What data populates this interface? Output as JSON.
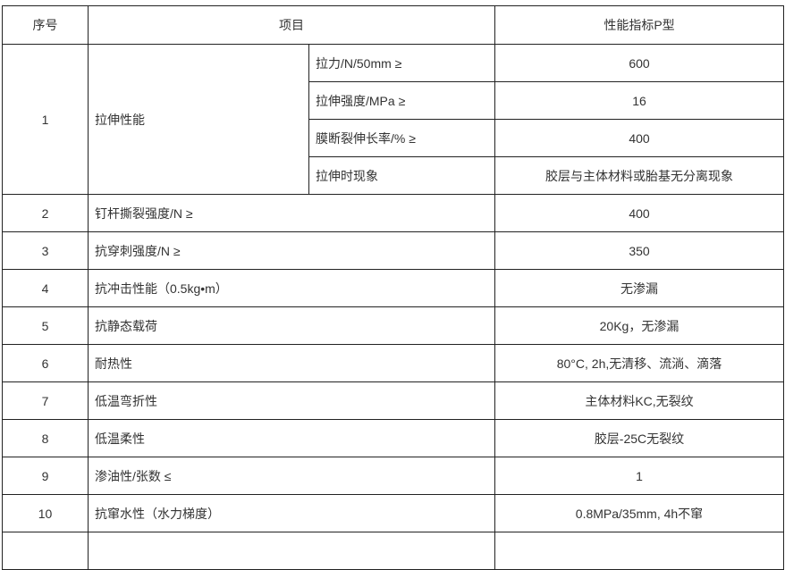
{
  "header": {
    "no": "序号",
    "item": "项目",
    "value": "性能指标P型"
  },
  "row1": {
    "no": "1",
    "item": "拉伸性能",
    "subs": [
      {
        "name": "拉力/N/50mm ≥",
        "value": "600"
      },
      {
        "name": "拉伸强度/MPa ≥",
        "value": "16"
      },
      {
        "name": "膜断裂伸长率/% ≥",
        "value": "400"
      },
      {
        "name": "拉伸时现象",
        "value": "胶层与主体材料或胎基无分离现象"
      }
    ]
  },
  "rows": [
    {
      "no": "2",
      "item": "钉杆撕裂强度/N ≥",
      "value": "400"
    },
    {
      "no": "3",
      "item": "抗穿刺强度/N ≥",
      "value": "350"
    },
    {
      "no": "4",
      "item": "抗冲击性能（0.5kg•m）",
      "value": "无渗漏"
    },
    {
      "no": "5",
      "item": "抗静态载荷",
      "value": "20Kg，无渗漏"
    },
    {
      "no": "6",
      "item": "耐热性",
      "value": "80°C, 2h,无清移、流淌、滴落"
    },
    {
      "no": "7",
      "item": "低温弯折性",
      "value": "主体材料KC,无裂纹"
    },
    {
      "no": "8",
      "item": "低温柔性",
      "value": "胶层-25C无裂纹"
    },
    {
      "no": "9",
      "item": "渗油性/张数 ≤",
      "value": "1"
    },
    {
      "no": "10",
      "item": "抗窜水性（水力梯度）",
      "value": "0.8MPa/35mm, 4h不窜"
    }
  ]
}
